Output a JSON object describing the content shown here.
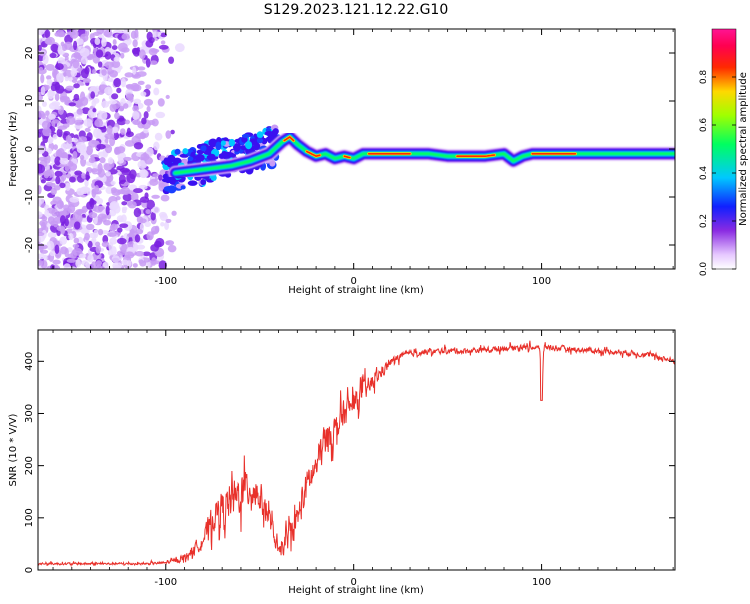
{
  "title": "S129.2023.121.12.22.G10",
  "chart_data": [
    {
      "type": "heatmap",
      "xlabel": "Height of straight line (km)",
      "ylabel": "Frequency (Hz)",
      "xlim": [
        -168,
        171
      ],
      "ylim": [
        -25,
        25
      ],
      "xticks": [
        -100,
        0,
        100
      ],
      "xtick_labels": [
        "-100",
        "0",
        "100"
      ],
      "yticks": [
        -20,
        -10,
        0,
        10,
        20
      ],
      "ytick_labels": [
        "-20",
        "-10",
        "0",
        "10",
        "20"
      ],
      "colorbar": {
        "label": "Normalized spectral amplitude",
        "range": [
          0,
          1
        ],
        "ticks": [
          0.0,
          0.2,
          0.4,
          0.6,
          0.8
        ],
        "tick_labels": [
          "0.0",
          "0.2",
          "0.4",
          "0.6",
          "0.8"
        ]
      },
      "ridge": {
        "x": [
          -95,
          -85,
          -75,
          -65,
          -55,
          -45,
          -38,
          -34,
          -30,
          -25,
          -20,
          -15,
          -10,
          -5,
          0,
          5,
          10,
          20,
          30,
          40,
          50,
          60,
          70,
          80,
          85,
          90,
          95,
          100,
          110,
          120,
          130,
          140,
          150,
          160,
          171
        ],
        "y": [
          -5,
          -4.5,
          -4,
          -3.5,
          -2.5,
          -1,
          1.5,
          2.5,
          1,
          -0.5,
          -1.5,
          -1,
          -2,
          -1.5,
          -2,
          -1,
          -1,
          -1,
          -1,
          -1,
          -1.5,
          -1.5,
          -1.5,
          -1,
          -2.5,
          -1.5,
          -1,
          -1,
          -1,
          -1,
          -1,
          -1,
          -1,
          -1,
          -1
        ]
      },
      "grid": false
    },
    {
      "type": "line",
      "xlabel": "Height of straight line (km)",
      "ylabel": "SNR (10 * V/V)",
      "xlim": [
        -168,
        171
      ],
      "ylim": [
        0,
        460
      ],
      "xticks": [
        -100,
        0,
        100
      ],
      "xtick_labels": [
        "-100",
        "0",
        "100"
      ],
      "yticks": [
        0,
        100,
        200,
        300,
        400
      ],
      "ytick_labels": [
        "0",
        "100",
        "200",
        "300",
        "400"
      ],
      "color": "#e8302a",
      "series": [
        {
          "x": [
            -168,
            -150,
            -130,
            -110,
            -100,
            -95,
            -90,
            -85,
            -80,
            -75,
            -70,
            -65,
            -60,
            -55,
            -50,
            -45,
            -40,
            -35,
            -30,
            -25,
            -20,
            -15,
            -10,
            -5,
            0,
            5,
            10,
            15,
            20,
            25,
            30,
            40,
            50,
            60,
            70,
            80,
            90,
            99,
            100,
            101,
            110,
            120,
            130,
            140,
            150,
            160,
            171
          ],
          "y": [
            12,
            12,
            12,
            12,
            14,
            18,
            25,
            40,
            60,
            100,
            120,
            130,
            150,
            160,
            140,
            100,
            30,
            60,
            100,
            160,
            200,
            250,
            270,
            300,
            320,
            340,
            360,
            380,
            400,
            410,
            415,
            418,
            420,
            420,
            422,
            425,
            428,
            425,
            340,
            428,
            425,
            422,
            420,
            418,
            415,
            410,
            400
          ],
          "amplitude": [
            4,
            4,
            4,
            4,
            5,
            8,
            12,
            20,
            30,
            50,
            60,
            70,
            80,
            70,
            60,
            40,
            20,
            40,
            50,
            60,
            60,
            60,
            50,
            50,
            40,
            40,
            30,
            20,
            15,
            12,
            10,
            10,
            10,
            10,
            10,
            10,
            10,
            10,
            10,
            10,
            10,
            10,
            10,
            10,
            10,
            10,
            10
          ]
        }
      ],
      "grid": false
    }
  ]
}
